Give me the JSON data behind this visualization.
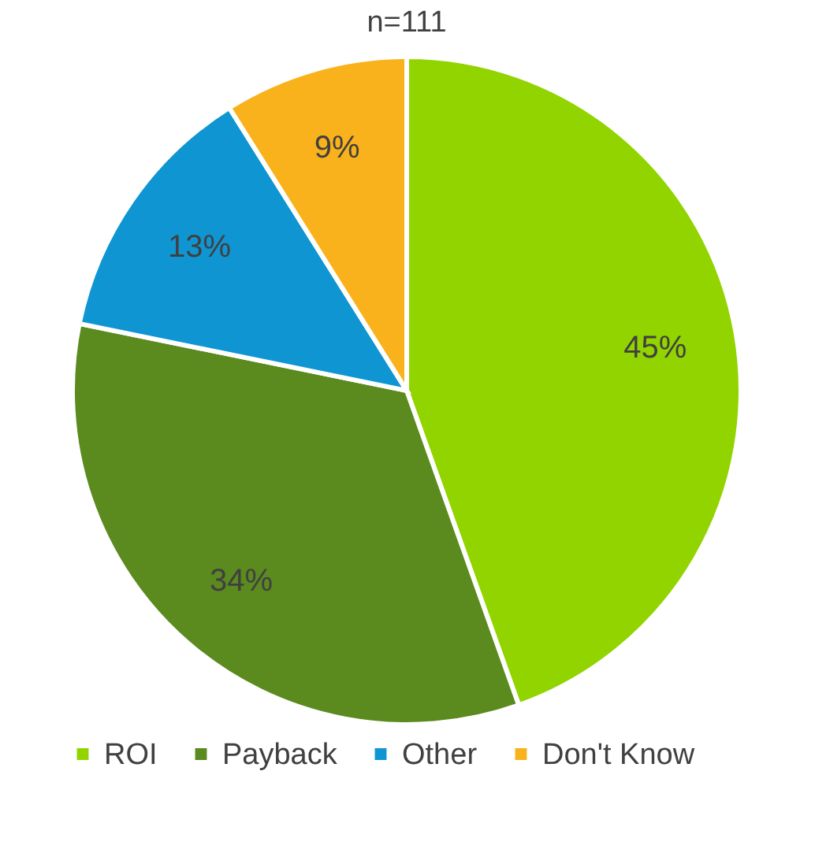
{
  "chart_data": {
    "type": "pie",
    "title": "n=111",
    "categories": [
      "ROI",
      "Payback",
      "Other",
      "Don't Know"
    ],
    "values": [
      45,
      34,
      13,
      9
    ],
    "colors": [
      "#92d400",
      "#5b8a1e",
      "#0f95d2",
      "#f9b21b"
    ],
    "value_labels": [
      "45%",
      "34%",
      "13%",
      "9%"
    ],
    "legend": "bottom"
  }
}
